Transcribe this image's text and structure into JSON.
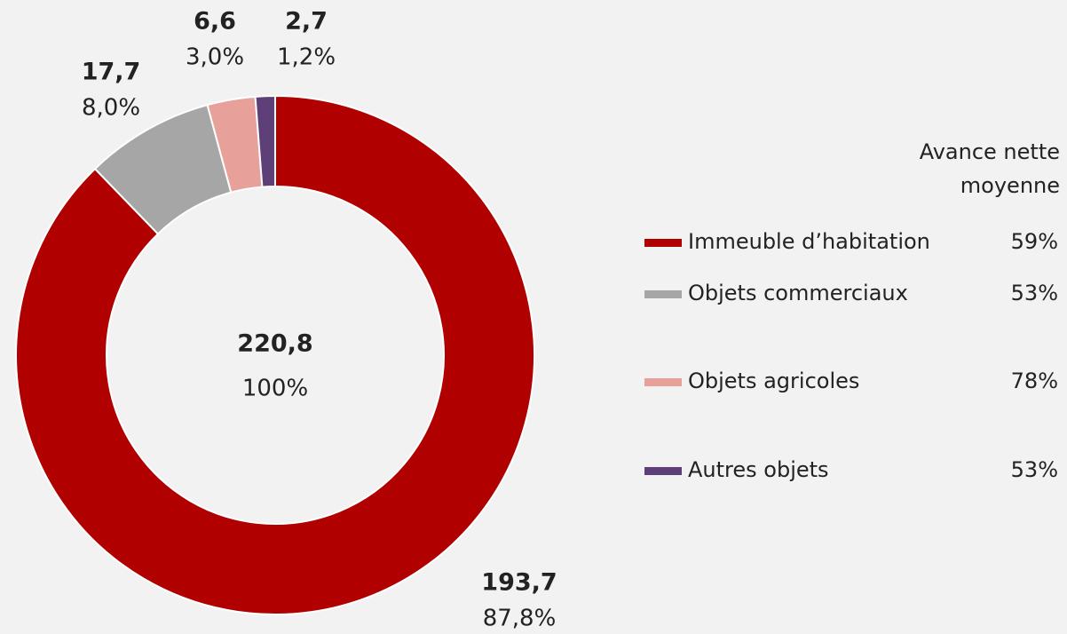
{
  "chart_data": {
    "type": "donut",
    "categories": [
      "Immeuble d’habitation",
      "Objets commerciaux",
      "Objets agricoles",
      "Autres objets"
    ],
    "values": [
      193.7,
      17.7,
      6.6,
      2.7
    ],
    "value_labels": [
      "193,7",
      "17,7",
      "6,6",
      "2,7"
    ],
    "percentages": [
      87.8,
      8.0,
      3.0,
      1.2
    ],
    "percentage_labels": [
      "87,8%",
      "8,0%",
      "3,0%",
      "1,2%"
    ],
    "colors": [
      "#b00000",
      "#a6a6a6",
      "#e8a09a",
      "#5f3f78"
    ],
    "total": 220.8,
    "total_label": "220,8",
    "total_percent": 100,
    "total_percent_label": "100%",
    "legend_value_title": "Avance nette moyenne",
    "legend_values": [
      59,
      53,
      78,
      53
    ],
    "legend_value_labels": [
      "59%",
      "53%",
      "78%",
      "53%"
    ]
  }
}
